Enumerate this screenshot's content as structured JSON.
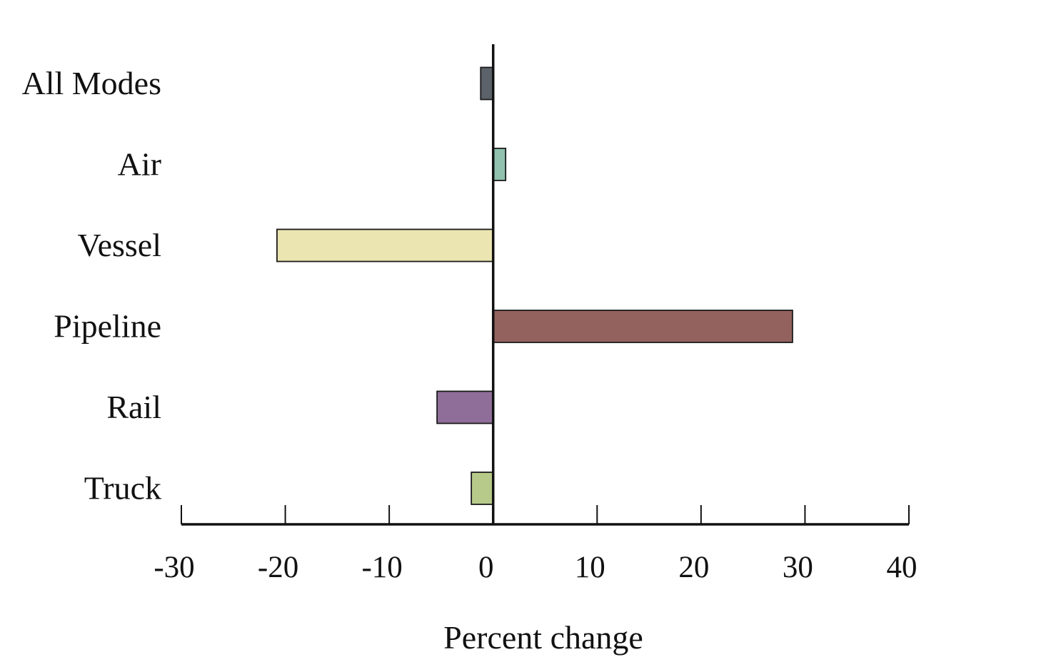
{
  "chart_data": {
    "type": "bar",
    "orientation": "horizontal",
    "categories": [
      "All Modes",
      "Air",
      "Vessel",
      "Pipeline",
      "Rail",
      "Truck"
    ],
    "values": [
      -1.2,
      1.2,
      -20.8,
      28.8,
      -5.4,
      -2.1
    ],
    "colors": [
      "#5c6269",
      "#8fc1ae",
      "#ebe5b1",
      "#93625e",
      "#8f6f99",
      "#b8ca8a"
    ],
    "title": "",
    "xlabel": "Percent change",
    "ylabel": "",
    "xlim": [
      -30,
      40
    ],
    "xticks": [
      -30,
      -20,
      -10,
      0,
      10,
      20,
      30,
      40
    ],
    "xtick_labels": [
      "-30",
      "-20",
      "-10",
      "0",
      "10",
      "20",
      "30",
      "40"
    ],
    "grid": false,
    "legend": "none"
  }
}
